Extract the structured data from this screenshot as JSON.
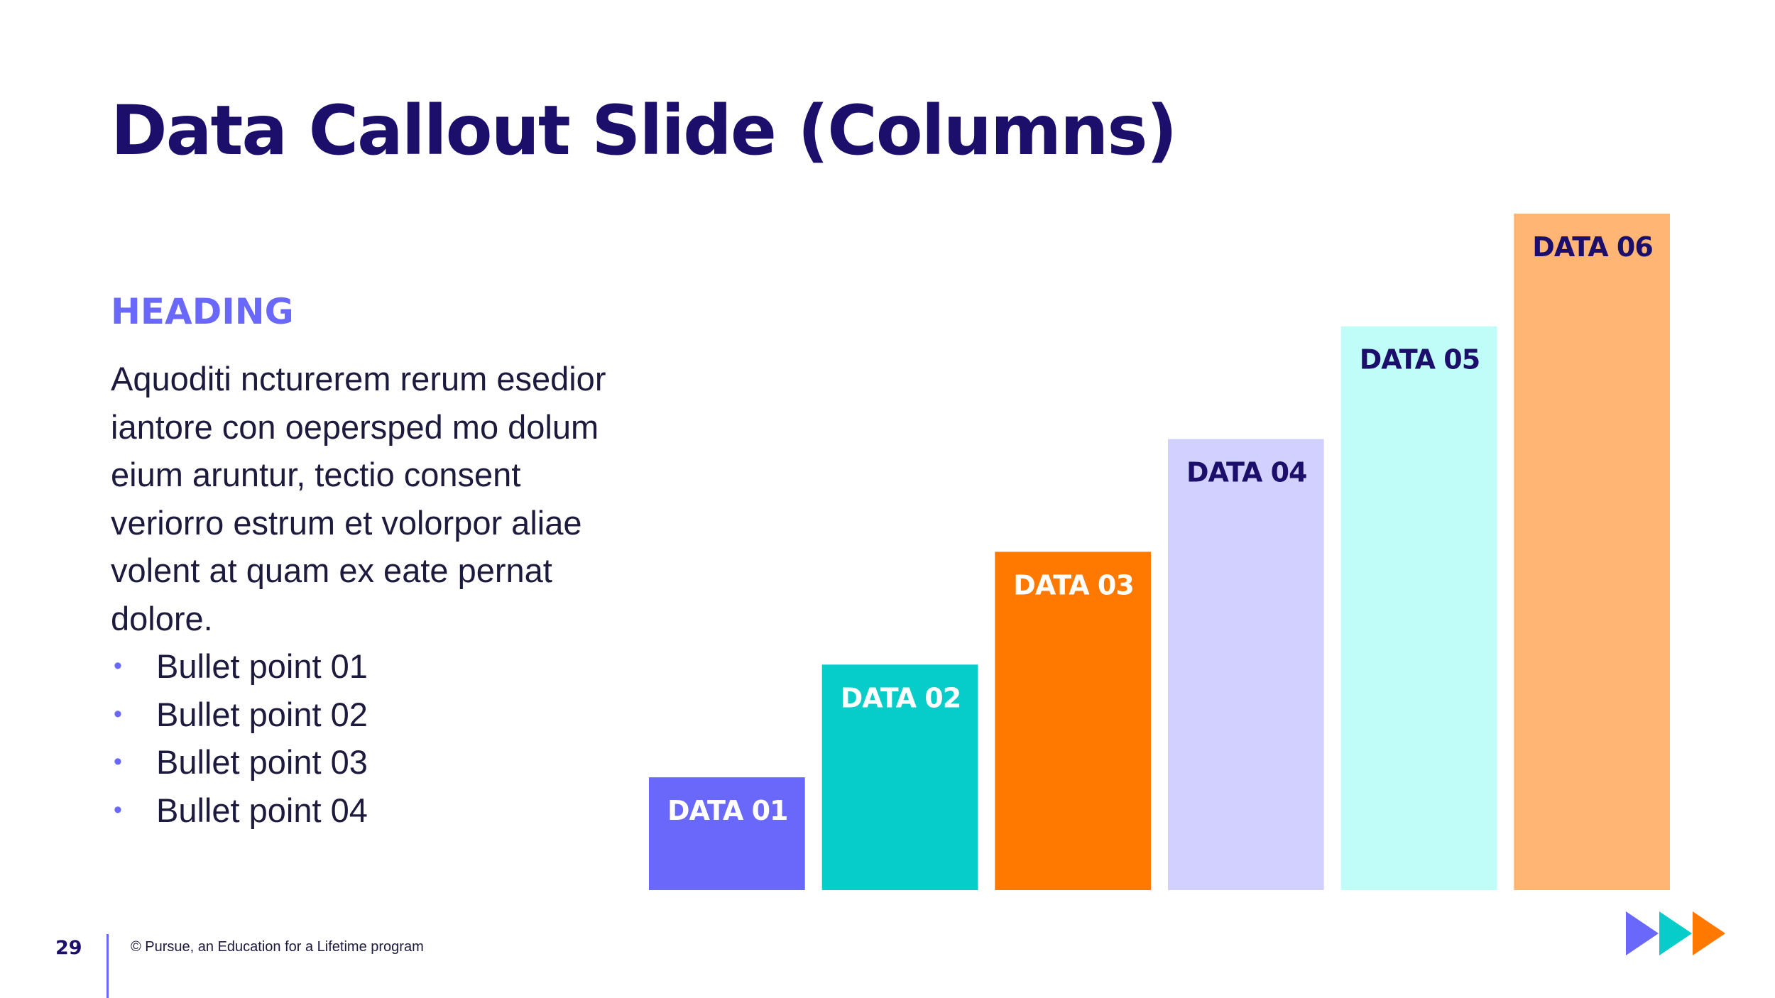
{
  "slide": {
    "title": "Data Callout Slide (Columns)",
    "heading": "HEADING",
    "body": "Aquoditi ncturerem rerum esedior iantore con oepersped mo dolum eium aruntur, tectio consent veriorro estrum et volorpor aliae volent at quam ex eate pernat dolore.",
    "bullet_glyph": "•",
    "bullets": [
      "Bullet point 01",
      "Bullet point 02",
      "Bullet point 03",
      "Bullet point 04"
    ]
  },
  "footer": {
    "page_number": "29",
    "copyright": "© Pursue, an Education for a Lifetime program",
    "logo_icon": "triple-play-arrows-icon"
  },
  "colors": {
    "title": "#1b0f6b",
    "heading": "#6a67fb",
    "body_text": "#1c1a3d",
    "bullet": "#6a67fb",
    "footer_divider": "#6a67fb",
    "logo": [
      "#6a67fb",
      "#06cdc8",
      "#ff7900"
    ]
  },
  "chart_data": {
    "type": "bar",
    "categories": [
      "DATA 01",
      "DATA 02",
      "DATA 03",
      "DATA 04",
      "DATA 05",
      "DATA 06"
    ],
    "values": [
      1,
      2,
      3,
      4,
      5,
      6
    ],
    "bar_colors": [
      "#6a67fb",
      "#06cdc8",
      "#ff7900",
      "#d2d1fe",
      "#c0fcf8",
      "#ffb674"
    ],
    "label_colors": [
      "#ffffff",
      "#ffffff",
      "#ffffff",
      "#1b0f6b",
      "#1b0f6b",
      "#1b0f6b"
    ],
    "ylim": [
      0,
      7
    ],
    "grid": false,
    "legend": "none",
    "axes": "hidden"
  }
}
